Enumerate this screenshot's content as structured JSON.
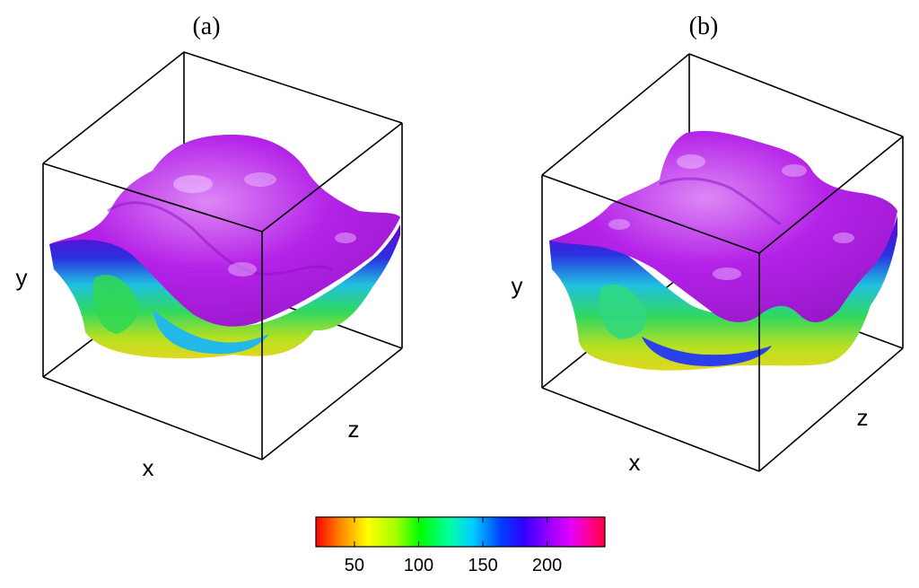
{
  "panels": [
    {
      "label": "(a)",
      "axes": {
        "x": "x",
        "y": "y",
        "z": "z"
      }
    },
    {
      "label": "(b)",
      "axes": {
        "x": "x",
        "y": "y",
        "z": "z"
      }
    }
  ],
  "colorbar": {
    "ticks": [
      "50",
      "100",
      "150",
      "200"
    ],
    "tick_values": [
      50,
      100,
      150,
      200
    ],
    "range": [
      20,
      245
    ],
    "colors": [
      "#ff0000",
      "#ffa000",
      "#ffff00",
      "#a0ff00",
      "#00ff00",
      "#00ffa0",
      "#00c8ff",
      "#0040ff",
      "#3000ff",
      "#9000ff",
      "#d000ff",
      "#ff00c0",
      "#ff0040"
    ]
  },
  "surface_colors": {
    "top": "#b21ce6",
    "top_light": "#d070f0",
    "blue": "#2a2ae0",
    "cyan": "#20c8e0",
    "green": "#40e040",
    "yellow": "#d8e020"
  }
}
